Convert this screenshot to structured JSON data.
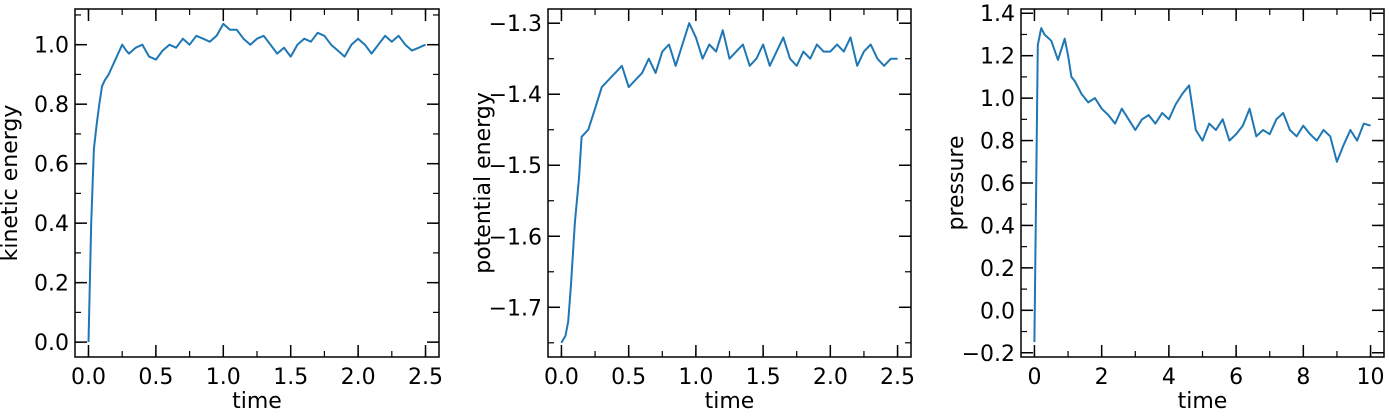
{
  "chart_data": [
    {
      "type": "line",
      "xlabel": "time",
      "ylabel": "kinetic energy",
      "xlim": [
        -0.1,
        2.6
      ],
      "ylim": [
        -0.05,
        1.12
      ],
      "xticks": [
        "0.0",
        "0.5",
        "1.0",
        "1.5",
        "2.0",
        "2.5"
      ],
      "yticks": [
        "0.0",
        "0.2",
        "0.4",
        "0.6",
        "0.8",
        "1.0"
      ],
      "line_color": "#1f77b4",
      "grid": false,
      "series": [
        {
          "x": [
            0.0,
            0.02,
            0.04,
            0.06,
            0.08,
            0.1,
            0.12,
            0.15,
            0.18,
            0.2,
            0.22,
            0.25,
            0.28,
            0.3,
            0.35,
            0.4,
            0.45,
            0.5,
            0.55,
            0.6,
            0.65,
            0.7,
            0.75,
            0.8,
            0.85,
            0.9,
            0.95,
            1.0,
            1.05,
            1.1,
            1.15,
            1.2,
            1.25,
            1.3,
            1.35,
            1.4,
            1.45,
            1.5,
            1.55,
            1.6,
            1.65,
            1.7,
            1.75,
            1.8,
            1.85,
            1.9,
            1.95,
            2.0,
            2.05,
            2.1,
            2.15,
            2.2,
            2.25,
            2.3,
            2.35,
            2.4,
            2.45,
            2.5
          ],
          "y": [
            0.0,
            0.4,
            0.65,
            0.73,
            0.8,
            0.86,
            0.88,
            0.9,
            0.93,
            0.95,
            0.97,
            1.0,
            0.98,
            0.97,
            0.99,
            1.0,
            0.96,
            0.95,
            0.98,
            1.0,
            0.99,
            1.02,
            1.0,
            1.03,
            1.02,
            1.01,
            1.03,
            1.07,
            1.05,
            1.05,
            1.02,
            1.0,
            1.02,
            1.03,
            1.0,
            0.97,
            0.99,
            0.96,
            1.0,
            1.02,
            1.01,
            1.04,
            1.03,
            1.0,
            0.98,
            0.96,
            1.0,
            1.02,
            1.0,
            0.97,
            1.0,
            1.03,
            1.01,
            1.03,
            1.0,
            0.98,
            0.99,
            1.0
          ]
        }
      ]
    },
    {
      "type": "line",
      "xlabel": "time",
      "ylabel": "potential energy",
      "xlim": [
        -0.1,
        2.6
      ],
      "ylim": [
        -1.77,
        -1.28
      ],
      "xticks": [
        "0.0",
        "0.5",
        "1.0",
        "1.5",
        "2.0",
        "2.5"
      ],
      "yticks": [
        "−1.3",
        "−1.4",
        "−1.5",
        "−1.6",
        "−1.7"
      ],
      "line_color": "#1f77b4",
      "grid": false,
      "series": [
        {
          "x": [
            0.0,
            0.03,
            0.05,
            0.07,
            0.1,
            0.13,
            0.15,
            0.2,
            0.25,
            0.3,
            0.35,
            0.4,
            0.45,
            0.5,
            0.55,
            0.6,
            0.65,
            0.7,
            0.75,
            0.8,
            0.85,
            0.9,
            0.95,
            1.0,
            1.05,
            1.1,
            1.15,
            1.2,
            1.25,
            1.3,
            1.35,
            1.4,
            1.45,
            1.5,
            1.55,
            1.6,
            1.65,
            1.7,
            1.75,
            1.8,
            1.85,
            1.9,
            1.95,
            2.0,
            2.05,
            2.1,
            2.15,
            2.2,
            2.25,
            2.3,
            2.35,
            2.4,
            2.45,
            2.5
          ],
          "y": [
            -1.75,
            -1.74,
            -1.72,
            -1.67,
            -1.58,
            -1.52,
            -1.46,
            -1.45,
            -1.42,
            -1.39,
            -1.38,
            -1.37,
            -1.36,
            -1.39,
            -1.38,
            -1.37,
            -1.35,
            -1.37,
            -1.34,
            -1.33,
            -1.36,
            -1.33,
            -1.3,
            -1.32,
            -1.35,
            -1.33,
            -1.34,
            -1.31,
            -1.35,
            -1.34,
            -1.33,
            -1.36,
            -1.35,
            -1.33,
            -1.36,
            -1.34,
            -1.32,
            -1.35,
            -1.36,
            -1.34,
            -1.35,
            -1.33,
            -1.34,
            -1.34,
            -1.33,
            -1.34,
            -1.32,
            -1.36,
            -1.34,
            -1.33,
            -1.35,
            -1.36,
            -1.35,
            -1.35
          ]
        }
      ]
    },
    {
      "type": "line",
      "xlabel": "time",
      "ylabel": "pressure",
      "xlim": [
        -0.4,
        10.4
      ],
      "ylim": [
        -0.22,
        1.42
      ],
      "xticks": [
        "0",
        "2",
        "4",
        "6",
        "8",
        "10"
      ],
      "yticks": [
        "−0.2",
        "0.0",
        "0.2",
        "0.4",
        "0.6",
        "0.8",
        "1.0",
        "1.2",
        "1.4"
      ],
      "line_color": "#1f77b4",
      "grid": false,
      "series": [
        {
          "x": [
            0.0,
            0.1,
            0.2,
            0.3,
            0.5,
            0.7,
            0.9,
            1.0,
            1.1,
            1.2,
            1.4,
            1.6,
            1.8,
            2.0,
            2.2,
            2.4,
            2.6,
            2.8,
            3.0,
            3.2,
            3.4,
            3.6,
            3.8,
            4.0,
            4.2,
            4.4,
            4.6,
            4.8,
            5.0,
            5.2,
            5.4,
            5.6,
            5.8,
            6.0,
            6.2,
            6.4,
            6.6,
            6.8,
            7.0,
            7.2,
            7.4,
            7.6,
            7.8,
            8.0,
            8.2,
            8.4,
            8.6,
            8.8,
            9.0,
            9.2,
            9.4,
            9.6,
            9.8,
            10.0
          ],
          "y": [
            -0.15,
            1.25,
            1.33,
            1.3,
            1.27,
            1.18,
            1.28,
            1.2,
            1.1,
            1.08,
            1.02,
            0.98,
            1.0,
            0.95,
            0.92,
            0.88,
            0.95,
            0.9,
            0.85,
            0.9,
            0.92,
            0.88,
            0.93,
            0.9,
            0.97,
            1.02,
            1.06,
            0.85,
            0.8,
            0.88,
            0.85,
            0.9,
            0.8,
            0.83,
            0.87,
            0.95,
            0.82,
            0.85,
            0.83,
            0.9,
            0.93,
            0.85,
            0.82,
            0.87,
            0.83,
            0.8,
            0.85,
            0.82,
            0.7,
            0.78,
            0.85,
            0.8,
            0.88,
            0.87
          ]
        }
      ]
    }
  ]
}
